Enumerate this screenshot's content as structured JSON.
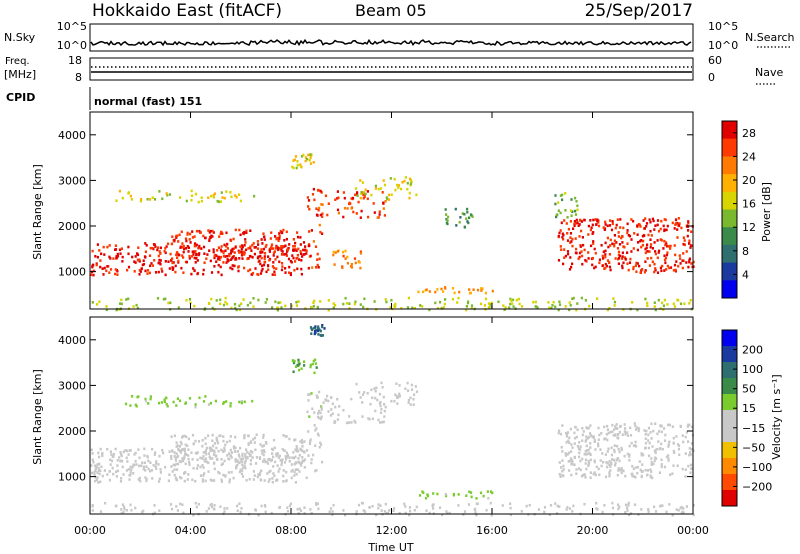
{
  "header": {
    "station": "Hokkaido East (fitACF)",
    "beam": "Beam 05",
    "date": "25/Sep/2017"
  },
  "left_labels": {
    "nsky": "N.Sky",
    "freq_line1": "Freq.",
    "freq_line2": "[MHz]",
    "cpid": "CPID"
  },
  "right_labels": {
    "nsearch": "N.Search",
    "nave": "Nave"
  },
  "cpid_text": "normal (fast) 151",
  "chart_data": [
    {
      "type": "line",
      "name": "noise-strip",
      "title": "",
      "x": [
        "00:00",
        "04:00",
        "08:00",
        "12:00",
        "16:00",
        "20:00",
        "00:00"
      ],
      "left_axis": {
        "label": "N.Sky",
        "ticks": [
          "10^5",
          "10^0"
        ]
      },
      "right_axis": {
        "label": "N.Search",
        "ticks": [
          "10^5",
          "10^0"
        ]
      }
    },
    {
      "type": "line",
      "name": "freq-nave-strip",
      "left_axis": {
        "label": "Freq. [MHz]",
        "ticks": [
          18,
          8
        ],
        "ylim": [
          8,
          18
        ]
      },
      "right_axis": {
        "label": "Nave",
        "ticks": [
          60,
          0
        ],
        "ylim": [
          0,
          60
        ]
      },
      "freq_mhz": 11,
      "nave": 36
    },
    {
      "type": "heatmap",
      "name": "power-panel",
      "xlabel": "",
      "ylabel": "Slant Range [km]",
      "xlim_hours": [
        0,
        24
      ],
      "ylim_km": [
        180,
        4500
      ],
      "y_ticks": [
        1000,
        2000,
        3000,
        4000
      ],
      "colorbar": {
        "label": "Power [dB]",
        "ticks": [
          4,
          8,
          12,
          16,
          20,
          24,
          28
        ],
        "range": [
          0,
          30
        ],
        "colors": [
          "#0000ee",
          "#1a3aa0",
          "#2f6f6f",
          "#3a8a4a",
          "#7ab82e",
          "#d8d400",
          "#ffb000",
          "#ff7a00",
          "#ff3a00",
          "#e00000"
        ]
      },
      "blobs": [
        {
          "t": [
            0.0,
            8.6
          ],
          "r": [
            950,
            1650
          ],
          "v": 28
        },
        {
          "t": [
            3.2,
            8.5
          ],
          "r": [
            1300,
            1950
          ],
          "v": 27
        },
        {
          "t": [
            8.6,
            9.2
          ],
          "r": [
            1100,
            2900
          ],
          "v": 26
        },
        {
          "t": [
            9.0,
            11.8
          ],
          "r": [
            2200,
            2800
          ],
          "v": 26
        },
        {
          "t": [
            10.5,
            13.0
          ],
          "r": [
            2600,
            3100
          ],
          "v": 17
        },
        {
          "t": [
            1.0,
            6.5
          ],
          "r": [
            2550,
            2800
          ],
          "v": 17
        },
        {
          "t": [
            8.0,
            9.0
          ],
          "r": [
            3300,
            3600
          ],
          "v": 17
        },
        {
          "t": [
            9.6,
            10.8
          ],
          "r": [
            1100,
            1500
          ],
          "v": 22
        },
        {
          "t": [
            18.6,
            24.0
          ],
          "r": [
            1000,
            2200
          ],
          "v": 27
        },
        {
          "t": [
            18.4,
            19.4
          ],
          "r": [
            2200,
            2800
          ],
          "v": 13
        },
        {
          "t": [
            14.0,
            15.2
          ],
          "r": [
            2000,
            2400
          ],
          "v": 11
        },
        {
          "t": [
            0.0,
            24.0
          ],
          "r": [
            180,
            450
          ],
          "v": 15
        },
        {
          "t": [
            13.0,
            16.0
          ],
          "r": [
            550,
            700
          ],
          "v": 21
        }
      ]
    },
    {
      "type": "heatmap",
      "name": "velocity-panel",
      "xlabel": "Time UT",
      "ylabel": "Slant Range [km]",
      "xlim_hours": [
        0,
        24
      ],
      "ylim_km": [
        180,
        4500
      ],
      "y_ticks": [
        1000,
        2000,
        3000,
        4000
      ],
      "x_ticks": [
        "00:00",
        "04:00",
        "08:00",
        "12:00",
        "16:00",
        "20:00",
        "00:00"
      ],
      "colorbar": {
        "label": "Velocity [m s⁻¹]",
        "ticks": [
          "200",
          "100",
          "50",
          "15",
          "−15",
          "−50",
          "−100",
          "−200"
        ],
        "range": [
          -250,
          250
        ],
        "colors": [
          "#0000ee",
          "#1a3aa0",
          "#2f6f6f",
          "#3a8a4a",
          "#7acc2e",
          "#c8c8c8",
          "#c8c8c8",
          "#f0c000",
          "#ff8a00",
          "#ff4a00",
          "#e00000"
        ]
      },
      "blobs": [
        {
          "t": [
            0.0,
            8.6
          ],
          "r": [
            900,
            1650
          ],
          "v": 0
        },
        {
          "t": [
            3.2,
            8.5
          ],
          "r": [
            1300,
            1950
          ],
          "v": -5
        },
        {
          "t": [
            8.6,
            9.2
          ],
          "r": [
            1100,
            2900
          ],
          "v": 5
        },
        {
          "t": [
            9.0,
            11.8
          ],
          "r": [
            2200,
            2800
          ],
          "v": 0
        },
        {
          "t": [
            10.5,
            13.0
          ],
          "r": [
            2600,
            3100
          ],
          "v": 0
        },
        {
          "t": [
            1.0,
            6.5
          ],
          "r": [
            2550,
            2800
          ],
          "v": 40
        },
        {
          "t": [
            8.0,
            9.0
          ],
          "r": [
            3300,
            3600
          ],
          "v": 60
        },
        {
          "t": [
            8.7,
            9.3
          ],
          "r": [
            4100,
            4350
          ],
          "v": 150
        },
        {
          "t": [
            18.6,
            24.0
          ],
          "r": [
            1000,
            2200
          ],
          "v": 0
        },
        {
          "t": [
            0.0,
            24.0
          ],
          "r": [
            180,
            450
          ],
          "v": -40
        },
        {
          "t": [
            13.0,
            16.0
          ],
          "r": [
            550,
            700
          ],
          "v": 40
        }
      ]
    }
  ]
}
